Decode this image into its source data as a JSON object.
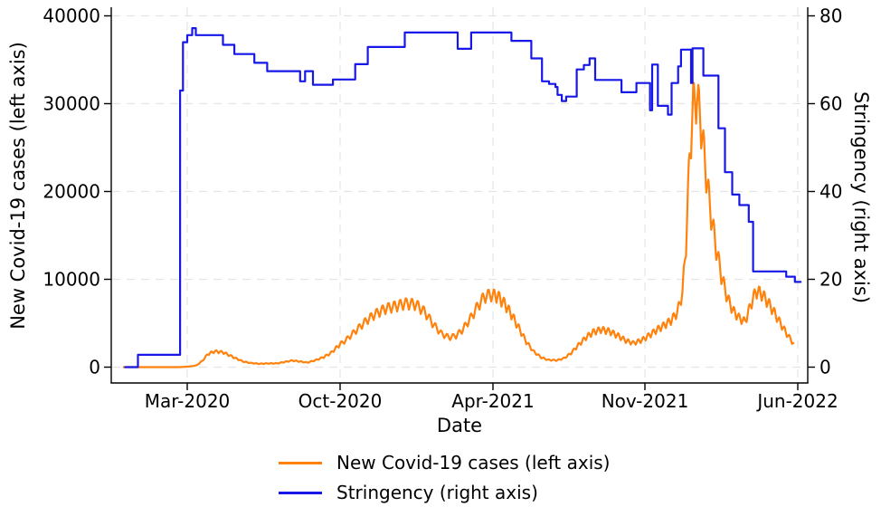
{
  "figure": {
    "x_axis": {
      "label": "Date",
      "ticks": [
        {
          "date": "2020-03-01",
          "label": "Mar-2020"
        },
        {
          "date": "2020-10-01",
          "label": "Oct-2020"
        },
        {
          "date": "2021-04-01",
          "label": "Apr-2021"
        },
        {
          "date": "2021-11-01",
          "label": "Nov-2021"
        },
        {
          "date": "2022-06-01",
          "label": "Jun-2022"
        }
      ]
    },
    "y_left": {
      "label": "New Covid-19 cases (left axis)",
      "tick_values": [
        0,
        10000,
        20000,
        30000,
        40000
      ],
      "range": [
        0,
        40000
      ]
    },
    "y_right": {
      "label": "Stringency  (right axis)",
      "tick_values": [
        0,
        20,
        40,
        60,
        80
      ],
      "range": [
        0,
        80
      ]
    },
    "legend": [
      {
        "label": "New Covid-19 cases (left axis)",
        "series": "cases"
      },
      {
        "label": "Stringency  (right axis)",
        "series": "stringency"
      }
    ]
  },
  "chart_data": {
    "type": "line",
    "x_type": "date",
    "title": "",
    "xlabel": "Date",
    "ylabel_left": "New Covid-19 cases (left axis)",
    "ylabel_right": "Stringency  (right axis)",
    "grid": true,
    "legend_position": "bottom",
    "series": [
      {
        "id": "cases",
        "name": "New Covid-19 cases (left axis)",
        "axis": "left",
        "color": "#ff820d",
        "style": "daily line with weekly zigzag oscillation",
        "oscillation": {
          "period_days": 7,
          "relative_amplitude": 0.1
        },
        "envelope_points": [
          [
            "2019-12-03",
            0
          ],
          [
            "2020-02-20",
            0
          ],
          [
            "2020-02-26",
            30
          ],
          [
            "2020-03-05",
            80
          ],
          [
            "2020-03-14",
            200
          ],
          [
            "2020-03-22",
            700
          ],
          [
            "2020-03-30",
            1500
          ],
          [
            "2020-04-08",
            1800
          ],
          [
            "2020-04-20",
            1700
          ],
          [
            "2020-04-28",
            1400
          ],
          [
            "2020-05-08",
            1000
          ],
          [
            "2020-05-18",
            650
          ],
          [
            "2020-05-28",
            480
          ],
          [
            "2020-06-10",
            380
          ],
          [
            "2020-06-22",
            420
          ],
          [
            "2020-07-05",
            430
          ],
          [
            "2020-07-16",
            600
          ],
          [
            "2020-07-26",
            750
          ],
          [
            "2020-08-06",
            640
          ],
          [
            "2020-08-16",
            520
          ],
          [
            "2020-08-28",
            800
          ],
          [
            "2020-09-08",
            1150
          ],
          [
            "2020-09-18",
            1600
          ],
          [
            "2020-09-28",
            2400
          ],
          [
            "2020-10-08",
            3100
          ],
          [
            "2020-10-20",
            4200
          ],
          [
            "2020-11-01",
            5300
          ],
          [
            "2020-11-12",
            6100
          ],
          [
            "2020-11-24",
            6700
          ],
          [
            "2020-12-06",
            7000
          ],
          [
            "2020-12-18",
            7300
          ],
          [
            "2020-12-30",
            7200
          ],
          [
            "2021-01-10",
            6300
          ],
          [
            "2021-01-20",
            4900
          ],
          [
            "2021-01-30",
            3800
          ],
          [
            "2021-02-08",
            3400
          ],
          [
            "2021-02-16",
            3600
          ],
          [
            "2021-02-24",
            4300
          ],
          [
            "2021-03-06",
            5700
          ],
          [
            "2021-03-14",
            7000
          ],
          [
            "2021-03-22",
            8100
          ],
          [
            "2021-03-30",
            8300
          ],
          [
            "2021-04-08",
            8100
          ],
          [
            "2021-04-18",
            7200
          ],
          [
            "2021-04-28",
            5900
          ],
          [
            "2021-05-08",
            4400
          ],
          [
            "2021-05-18",
            2900
          ],
          [
            "2021-05-28",
            1800
          ],
          [
            "2021-06-08",
            1100
          ],
          [
            "2021-06-18",
            820
          ],
          [
            "2021-06-30",
            780
          ],
          [
            "2021-07-10",
            1000
          ],
          [
            "2021-07-20",
            1600
          ],
          [
            "2021-07-30",
            2500
          ],
          [
            "2021-08-10",
            3400
          ],
          [
            "2021-08-20",
            4000
          ],
          [
            "2021-08-31",
            4300
          ],
          [
            "2021-09-12",
            4100
          ],
          [
            "2021-09-24",
            3600
          ],
          [
            "2021-10-06",
            3000
          ],
          [
            "2021-10-16",
            2750
          ],
          [
            "2021-10-28",
            3100
          ],
          [
            "2021-11-08",
            3700
          ],
          [
            "2021-11-18",
            4300
          ],
          [
            "2021-11-28",
            4800
          ],
          [
            "2021-12-08",
            5400
          ],
          [
            "2021-12-16",
            6300
          ],
          [
            "2021-12-23",
            8500
          ],
          [
            "2021-12-28",
            14000
          ],
          [
            "2022-01-02",
            24000
          ],
          [
            "2022-01-07",
            30000
          ],
          [
            "2022-01-12",
            31000
          ],
          [
            "2022-01-17",
            28500
          ],
          [
            "2022-01-23",
            23500
          ],
          [
            "2022-01-30",
            18500
          ],
          [
            "2022-02-07",
            14000
          ],
          [
            "2022-02-15",
            10500
          ],
          [
            "2022-02-23",
            8000
          ],
          [
            "2022-03-03",
            6500
          ],
          [
            "2022-03-12",
            5600
          ],
          [
            "2022-03-20",
            5200
          ],
          [
            "2022-03-28",
            7200
          ],
          [
            "2022-04-04",
            8700
          ],
          [
            "2022-04-12",
            8400
          ],
          [
            "2022-04-20",
            7500
          ],
          [
            "2022-04-29",
            6300
          ],
          [
            "2022-05-08",
            5000
          ],
          [
            "2022-05-17",
            3800
          ],
          [
            "2022-05-26",
            2700
          ]
        ]
      },
      {
        "id": "stringency",
        "name": "Stringency  (right axis)",
        "axis": "right",
        "color": "#1717e8",
        "interpolation": "step-after",
        "points": [
          [
            "2019-12-05",
            0
          ],
          [
            "2019-12-23",
            2.8
          ],
          [
            "2020-02-20",
            63.0
          ],
          [
            "2020-02-24",
            74.0
          ],
          [
            "2020-03-01",
            75.6
          ],
          [
            "2020-03-08",
            77.2
          ],
          [
            "2020-03-13",
            75.6
          ],
          [
            "2020-04-20",
            73.4
          ],
          [
            "2020-05-06",
            71.3
          ],
          [
            "2020-06-03",
            69.3
          ],
          [
            "2020-06-21",
            67.4
          ],
          [
            "2020-08-06",
            65.1
          ],
          [
            "2020-08-13",
            67.4
          ],
          [
            "2020-08-24",
            64.3
          ],
          [
            "2020-09-21",
            65.5
          ],
          [
            "2020-10-19",
            69.0
          ],
          [
            "2020-11-03",
            72.9
          ],
          [
            "2020-12-17",
            76.2
          ],
          [
            "2021-02-18",
            72.5
          ],
          [
            "2021-03-06",
            76.2
          ],
          [
            "2021-04-27",
            74.3
          ],
          [
            "2021-05-25",
            70.3
          ],
          [
            "2021-06-09",
            65.1
          ],
          [
            "2021-06-19",
            64.5
          ],
          [
            "2021-06-28",
            63.8
          ],
          [
            "2021-07-01",
            62.0
          ],
          [
            "2021-07-07",
            60.6
          ],
          [
            "2021-07-13",
            61.6
          ],
          [
            "2021-07-28",
            67.8
          ],
          [
            "2021-08-07",
            68.8
          ],
          [
            "2021-08-15",
            70.3
          ],
          [
            "2021-08-23",
            65.4
          ],
          [
            "2021-09-29",
            62.6
          ],
          [
            "2021-10-20",
            64.7
          ],
          [
            "2021-11-08",
            58.5
          ],
          [
            "2021-11-11",
            68.9
          ],
          [
            "2021-11-19",
            59.5
          ],
          [
            "2021-12-03",
            57.5
          ],
          [
            "2021-12-08",
            64.7
          ],
          [
            "2021-12-17",
            68.5
          ],
          [
            "2021-12-21",
            72.3
          ],
          [
            "2022-01-04",
            64.7
          ],
          [
            "2022-01-06",
            72.6
          ],
          [
            "2022-01-21",
            66.4
          ],
          [
            "2022-02-11",
            54.4
          ],
          [
            "2022-02-20",
            44.4
          ],
          [
            "2022-03-02",
            39.3
          ],
          [
            "2022-03-12",
            36.9
          ],
          [
            "2022-03-25",
            33.1
          ],
          [
            "2022-03-31",
            21.8
          ],
          [
            "2022-05-16",
            20.6
          ],
          [
            "2022-05-28",
            19.4
          ]
        ],
        "end_date": "2022-06-05"
      }
    ]
  }
}
